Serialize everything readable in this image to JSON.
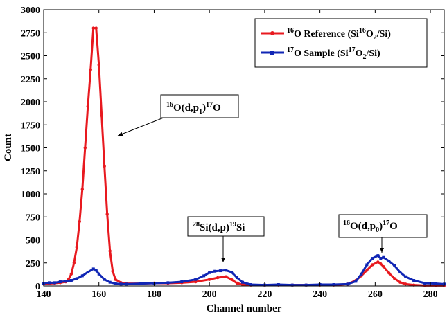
{
  "chart_data": {
    "type": "line",
    "xlabel": "Channel number",
    "ylabel": "Count",
    "xlim": [
      140,
      285
    ],
    "ylim": [
      0,
      3000
    ],
    "x_ticks": [
      "140",
      "160",
      "180",
      "200",
      "220",
      "240",
      "260",
      "280"
    ],
    "y_ticks": [
      "0",
      "250",
      "500",
      "750",
      "1000",
      "1250",
      "1500",
      "1750",
      "2000",
      "2250",
      "2500",
      "2750",
      "3000"
    ],
    "legend_position": "top-right",
    "grid": false,
    "series": [
      {
        "name": "16O Reference (Si16O2/Si)",
        "legend": [
          {
            "t": "16",
            "k": "sup"
          },
          {
            "t": "O Reference (Si",
            "k": "n"
          },
          {
            "t": "16",
            "k": "sup"
          },
          {
            "t": "O",
            "k": "n"
          },
          {
            "t": "2",
            "k": "sub"
          },
          {
            "t": "/Si)",
            "k": "n"
          }
        ],
        "color": "#e8191f",
        "marker": "circle",
        "x": [
          140,
          142,
          144,
          146,
          148,
          149,
          150,
          151,
          152,
          153,
          154,
          155,
          156,
          157,
          158,
          159,
          160,
          161,
          162,
          163,
          164,
          165,
          166,
          168,
          170,
          175,
          180,
          185,
          190,
          195,
          200,
          203,
          206,
          208,
          210,
          212,
          215,
          220,
          225,
          230,
          235,
          240,
          245,
          250,
          253,
          255,
          257,
          259,
          261,
          262,
          263,
          265,
          267,
          269,
          271,
          274,
          278,
          282,
          285
        ],
        "y": [
          20,
          25,
          30,
          35,
          45,
          70,
          130,
          250,
          420,
          700,
          1050,
          1500,
          1950,
          2350,
          2800,
          2800,
          2400,
          1850,
          1300,
          780,
          380,
          160,
          70,
          35,
          25,
          25,
          30,
          30,
          35,
          45,
          70,
          90,
          100,
          70,
          30,
          15,
          10,
          10,
          10,
          10,
          10,
          10,
          10,
          20,
          60,
          110,
          170,
          230,
          260,
          240,
          210,
          140,
          80,
          40,
          20,
          10,
          5,
          5,
          5
        ]
      },
      {
        "name": "17O Sample (Si17O2/Si)",
        "legend": [
          {
            "t": "17",
            "k": "sup"
          },
          {
            "t": "O Sample (Si",
            "k": "n"
          },
          {
            "t": "17",
            "k": "sup"
          },
          {
            "t": "O",
            "k": "n"
          },
          {
            "t": "2",
            "k": "sub"
          },
          {
            "t": "/Si)",
            "k": "n"
          }
        ],
        "color": "#1026b5",
        "marker": "square",
        "x": [
          140,
          142,
          144,
          146,
          148,
          150,
          152,
          154,
          156,
          158,
          159,
          160,
          162,
          164,
          166,
          168,
          170,
          175,
          180,
          185,
          190,
          195,
          198,
          200,
          202,
          204,
          206,
          208,
          210,
          212,
          215,
          220,
          225,
          230,
          235,
          240,
          245,
          250,
          253,
          255,
          257,
          259,
          261,
          262,
          263,
          265,
          267,
          269,
          271,
          274,
          278,
          282,
          285
        ],
        "y": [
          30,
          35,
          35,
          45,
          50,
          60,
          80,
          110,
          150,
          185,
          170,
          130,
          70,
          40,
          25,
          20,
          20,
          25,
          30,
          35,
          45,
          70,
          110,
          145,
          160,
          165,
          170,
          150,
          90,
          40,
          15,
          10,
          15,
          10,
          10,
          15,
          15,
          20,
          50,
          130,
          230,
          300,
          330,
          300,
          310,
          270,
          220,
          150,
          100,
          60,
          30,
          25,
          20
        ]
      }
    ],
    "annotations": [
      {
        "id": "ann-16o-dp1",
        "parts": [
          {
            "t": "16",
            "k": "sup"
          },
          {
            "t": "O(d,p",
            "k": "n"
          },
          {
            "t": "1",
            "k": "sub"
          },
          {
            "t": ")",
            "k": "n"
          },
          {
            "t": "17",
            "k": "sup"
          },
          {
            "t": "O",
            "k": "n"
          }
        ]
      },
      {
        "id": "ann-28si-dp",
        "parts": [
          {
            "t": "28",
            "k": "sup"
          },
          {
            "t": "Si(d,p)",
            "k": "n"
          },
          {
            "t": "19",
            "k": "sup"
          },
          {
            "t": "Si",
            "k": "n"
          }
        ]
      },
      {
        "id": "ann-16o-dp0",
        "parts": [
          {
            "t": "16",
            "k": "sup"
          },
          {
            "t": "O(d,p",
            "k": "n"
          },
          {
            "t": "0",
            "k": "sub"
          },
          {
            "t": ")",
            "k": "n"
          },
          {
            "t": "17",
            "k": "sup"
          },
          {
            "t": "O",
            "k": "n"
          }
        ]
      }
    ]
  }
}
